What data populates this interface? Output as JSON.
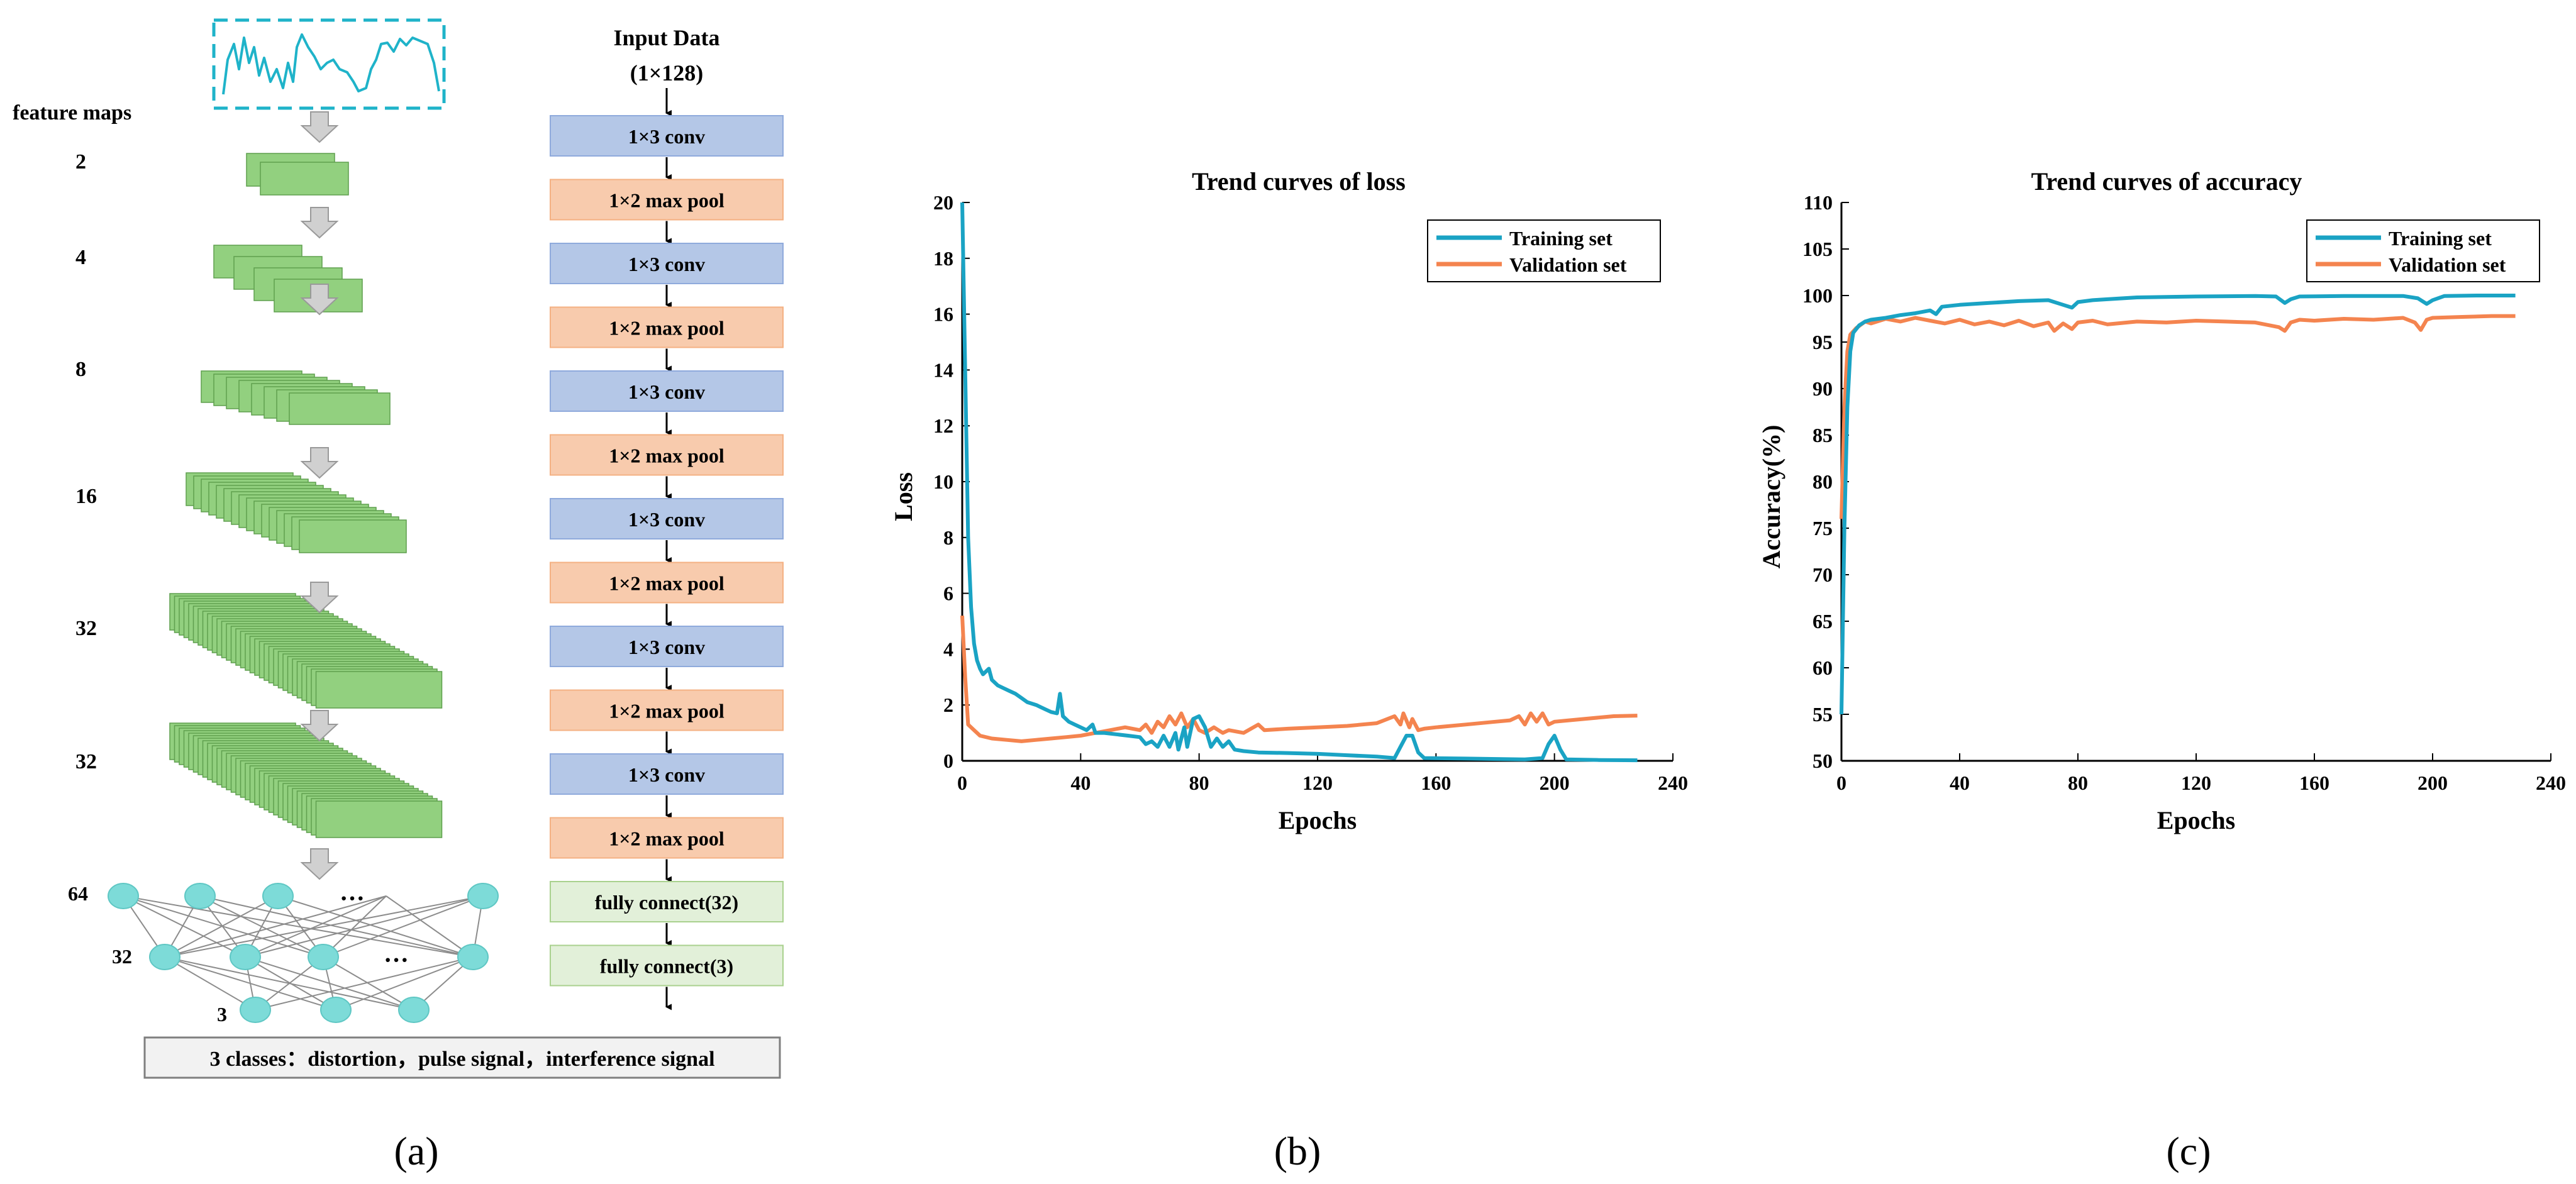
{
  "figure_a": {
    "feature_maps_label": "feature maps",
    "feature_counts": [
      "2",
      "4",
      "8",
      "16",
      "32",
      "32"
    ],
    "input_title": "Input  Data",
    "input_size": "(1×128)",
    "layers": [
      "1×3 conv",
      "1×2 max pool",
      "1×3 conv",
      "1×2 max pool",
      "1×3 conv",
      "1×2 max pool",
      "1×3 conv",
      "1×2 max pool",
      "1×3 conv",
      "1×2 max pool",
      "1×3 conv",
      "1×2 max pool",
      "fully connect(32)",
      "fully connect(3)"
    ],
    "dense_counts": [
      "64",
      "32",
      "3"
    ],
    "ellipsis": "···",
    "classes_text": "3 classes：distortion，pulse signal，interference signal",
    "caption": "(a)",
    "colors": {
      "conv": "#b4c7e7",
      "pool": "#f8cbad",
      "fc": "#e2f0d9",
      "map": "#92d07f",
      "node": "#7ddbd8",
      "signal": "#1fb3c9"
    }
  },
  "chart_data": [
    {
      "type": "line",
      "title": "Trend curves of loss",
      "xlabel": "Epochs",
      "ylabel": "Loss",
      "xlim": [
        0,
        240
      ],
      "ylim": [
        0,
        20
      ],
      "xticks": [
        0,
        40,
        80,
        120,
        160,
        200,
        240
      ],
      "yticks": [
        0,
        2,
        4,
        6,
        8,
        10,
        12,
        14,
        16,
        18,
        20
      ],
      "legend_position": "top-right",
      "caption": "(b)",
      "series": [
        {
          "name": "Training set",
          "color": "#1aa3c4",
          "points": [
            [
              0,
              20
            ],
            [
              1,
              14
            ],
            [
              2,
              8
            ],
            [
              3,
              5.5
            ],
            [
              4,
              4.2
            ],
            [
              5,
              3.6
            ],
            [
              6,
              3.3
            ],
            [
              7,
              3.1
            ],
            [
              8,
              3.2
            ],
            [
              9,
              3.3
            ],
            [
              10,
              2.9
            ],
            [
              12,
              2.7
            ],
            [
              14,
              2.6
            ],
            [
              16,
              2.5
            ],
            [
              18,
              2.4
            ],
            [
              20,
              2.25
            ],
            [
              22,
              2.1
            ],
            [
              25,
              2.0
            ],
            [
              28,
              1.85
            ],
            [
              30,
              1.75
            ],
            [
              32,
              1.7
            ],
            [
              33,
              2.4
            ],
            [
              34,
              1.6
            ],
            [
              36,
              1.4
            ],
            [
              38,
              1.3
            ],
            [
              40,
              1.2
            ],
            [
              42,
              1.1
            ],
            [
              44,
              1.3
            ],
            [
              45,
              1.0
            ],
            [
              48,
              1.0
            ],
            [
              52,
              0.95
            ],
            [
              56,
              0.9
            ],
            [
              60,
              0.85
            ],
            [
              62,
              0.6
            ],
            [
              64,
              0.7
            ],
            [
              66,
              0.5
            ],
            [
              68,
              0.9
            ],
            [
              70,
              0.5
            ],
            [
              72,
              1.0
            ],
            [
              73,
              0.4
            ],
            [
              75,
              1.2
            ],
            [
              76,
              0.5
            ],
            [
              78,
              1.5
            ],
            [
              80,
              1.6
            ],
            [
              82,
              1.2
            ],
            [
              84,
              0.5
            ],
            [
              86,
              0.8
            ],
            [
              88,
              0.5
            ],
            [
              90,
              0.7
            ],
            [
              92,
              0.4
            ],
            [
              95,
              0.35
            ],
            [
              100,
              0.3
            ],
            [
              110,
              0.28
            ],
            [
              120,
              0.25
            ],
            [
              130,
              0.2
            ],
            [
              140,
              0.15
            ],
            [
              146,
              0.1
            ],
            [
              148,
              0.5
            ],
            [
              150,
              0.9
            ],
            [
              152,
              0.9
            ],
            [
              154,
              0.3
            ],
            [
              156,
              0.1
            ],
            [
              170,
              0.08
            ],
            [
              190,
              0.05
            ],
            [
              196,
              0.1
            ],
            [
              198,
              0.6
            ],
            [
              200,
              0.9
            ],
            [
              202,
              0.4
            ],
            [
              204,
              0.05
            ],
            [
              215,
              0.03
            ],
            [
              228,
              0.02
            ]
          ]
        },
        {
          "name": "Validation set",
          "color": "#f4844f",
          "points": [
            [
              0,
              5.2
            ],
            [
              1,
              3.0
            ],
            [
              2,
              1.3
            ],
            [
              4,
              1.1
            ],
            [
              6,
              0.9
            ],
            [
              10,
              0.8
            ],
            [
              15,
              0.75
            ],
            [
              20,
              0.7
            ],
            [
              25,
              0.75
            ],
            [
              30,
              0.8
            ],
            [
              35,
              0.85
            ],
            [
              40,
              0.9
            ],
            [
              45,
              1.0
            ],
            [
              50,
              1.1
            ],
            [
              55,
              1.2
            ],
            [
              60,
              1.1
            ],
            [
              62,
              1.3
            ],
            [
              64,
              1.0
            ],
            [
              66,
              1.4
            ],
            [
              68,
              1.2
            ],
            [
              70,
              1.6
            ],
            [
              72,
              1.3
            ],
            [
              74,
              1.7
            ],
            [
              76,
              1.2
            ],
            [
              78,
              1.5
            ],
            [
              80,
              1.1
            ],
            [
              82,
              1.0
            ],
            [
              85,
              1.2
            ],
            [
              88,
              1.0
            ],
            [
              90,
              1.1
            ],
            [
              95,
              1.0
            ],
            [
              100,
              1.3
            ],
            [
              102,
              1.1
            ],
            [
              110,
              1.15
            ],
            [
              120,
              1.2
            ],
            [
              130,
              1.25
            ],
            [
              140,
              1.35
            ],
            [
              146,
              1.6
            ],
            [
              148,
              1.3
            ],
            [
              149,
              1.7
            ],
            [
              151,
              1.2
            ],
            [
              152,
              1.5
            ],
            [
              154,
              1.1
            ],
            [
              156,
              1.15
            ],
            [
              160,
              1.2
            ],
            [
              170,
              1.3
            ],
            [
              180,
              1.4
            ],
            [
              185,
              1.45
            ],
            [
              188,
              1.6
            ],
            [
              190,
              1.3
            ],
            [
              192,
              1.7
            ],
            [
              194,
              1.4
            ],
            [
              196,
              1.7
            ],
            [
              198,
              1.3
            ],
            [
              200,
              1.4
            ],
            [
              210,
              1.5
            ],
            [
              220,
              1.6
            ],
            [
              228,
              1.62
            ]
          ]
        }
      ]
    },
    {
      "type": "line",
      "title": "Trend curves of accuracy",
      "xlabel": "Epochs",
      "ylabel": "Accuracy(%)",
      "xlim": [
        0,
        240
      ],
      "ylim": [
        50,
        110
      ],
      "xticks": [
        0,
        40,
        80,
        120,
        160,
        200,
        240
      ],
      "yticks": [
        50,
        55,
        60,
        65,
        70,
        75,
        80,
        85,
        90,
        95,
        100,
        105,
        110
      ],
      "legend_position": "top-right",
      "caption": "(c)",
      "series": [
        {
          "name": "Training set",
          "color": "#1aa3c4",
          "points": [
            [
              0,
              55
            ],
            [
              1,
              75
            ],
            [
              2,
              88
            ],
            [
              3,
              94
            ],
            [
              4,
              96
            ],
            [
              6,
              96.8
            ],
            [
              8,
              97.2
            ],
            [
              10,
              97.4
            ],
            [
              15,
              97.6
            ],
            [
              20,
              97.9
            ],
            [
              25,
              98.1
            ],
            [
              30,
              98.4
            ],
            [
              32,
              98.0
            ],
            [
              34,
              98.8
            ],
            [
              40,
              99.0
            ],
            [
              50,
              99.2
            ],
            [
              60,
              99.4
            ],
            [
              70,
              99.5
            ],
            [
              75,
              99.0
            ],
            [
              78,
              98.7
            ],
            [
              80,
              99.3
            ],
            [
              85,
              99.5
            ],
            [
              90,
              99.6
            ],
            [
              100,
              99.8
            ],
            [
              120,
              99.9
            ],
            [
              140,
              99.95
            ],
            [
              147,
              99.9
            ],
            [
              150,
              99.2
            ],
            [
              152,
              99.6
            ],
            [
              155,
              99.9
            ],
            [
              170,
              99.95
            ],
            [
              190,
              99.95
            ],
            [
              195,
              99.7
            ],
            [
              198,
              99.1
            ],
            [
              200,
              99.5
            ],
            [
              204,
              99.95
            ],
            [
              215,
              100
            ],
            [
              228,
              100
            ]
          ]
        },
        {
          "name": "Validation set",
          "color": "#f4844f",
          "points": [
            [
              0,
              76
            ],
            [
              1,
              88
            ],
            [
              2,
              94
            ],
            [
              3,
              95.8
            ],
            [
              5,
              96.5
            ],
            [
              8,
              97.2
            ],
            [
              10,
              97.0
            ],
            [
              15,
              97.5
            ],
            [
              20,
              97.2
            ],
            [
              25,
              97.6
            ],
            [
              30,
              97.3
            ],
            [
              35,
              97.0
            ],
            [
              40,
              97.4
            ],
            [
              45,
              96.9
            ],
            [
              50,
              97.2
            ],
            [
              55,
              96.8
            ],
            [
              60,
              97.3
            ],
            [
              65,
              96.7
            ],
            [
              70,
              97.1
            ],
            [
              72,
              96.2
            ],
            [
              75,
              97.0
            ],
            [
              78,
              96.4
            ],
            [
              80,
              97.1
            ],
            [
              85,
              97.3
            ],
            [
              90,
              96.9
            ],
            [
              100,
              97.2
            ],
            [
              110,
              97.1
            ],
            [
              120,
              97.3
            ],
            [
              130,
              97.2
            ],
            [
              140,
              97.1
            ],
            [
              148,
              96.6
            ],
            [
              150,
              96.2
            ],
            [
              152,
              97.1
            ],
            [
              155,
              97.4
            ],
            [
              160,
              97.3
            ],
            [
              170,
              97.5
            ],
            [
              180,
              97.4
            ],
            [
              190,
              97.6
            ],
            [
              194,
              97.1
            ],
            [
              196,
              96.3
            ],
            [
              198,
              97.4
            ],
            [
              200,
              97.6
            ],
            [
              210,
              97.7
            ],
            [
              220,
              97.8
            ],
            [
              228,
              97.8
            ]
          ]
        }
      ]
    }
  ]
}
